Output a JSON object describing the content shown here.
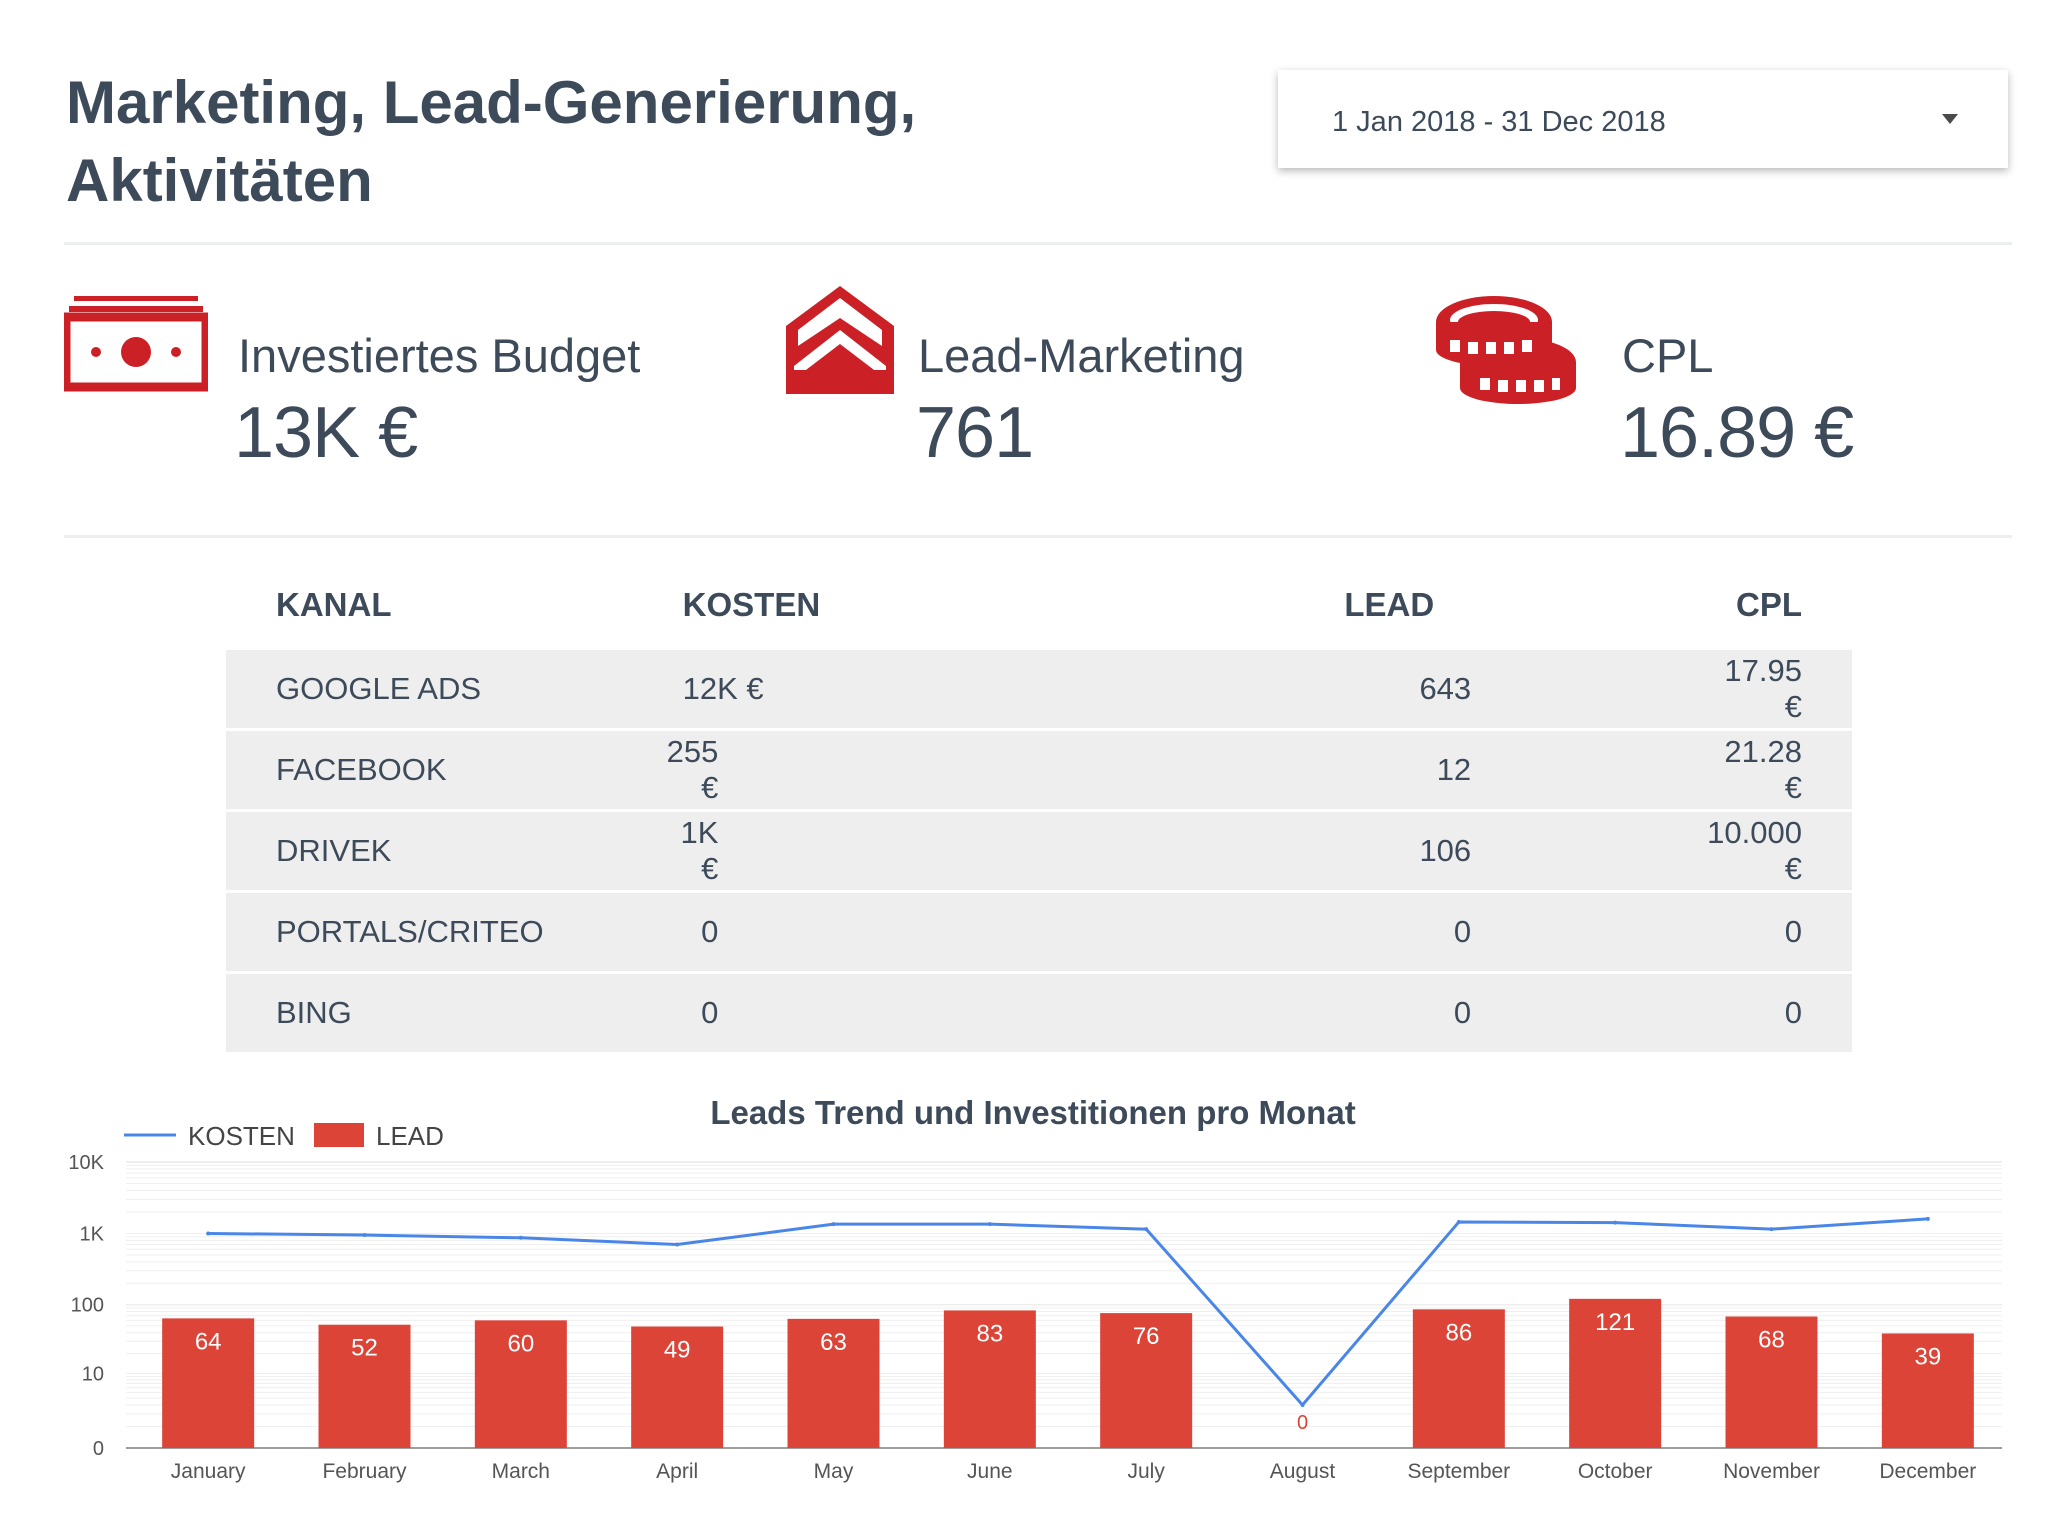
{
  "header": {
    "title_line1": "Marketing, Lead-Generierung,",
    "title_line2": "Aktivitäten",
    "date_range": "1 Jan 2018 - 31 Dec 2018"
  },
  "kpis": [
    {
      "icon": "money-bill-icon",
      "label": "Investiertes Budget",
      "value": "13K €"
    },
    {
      "icon": "envelope-icon",
      "label": "Lead-Marketing",
      "value": "761"
    },
    {
      "icon": "coins-icon",
      "label": "CPL",
      "value": "16.89 €"
    }
  ],
  "table": {
    "headers": [
      "KANAL",
      "KOSTEN",
      "LEAD",
      "CPL"
    ],
    "rows": [
      {
        "kanal": "GOOGLE ADS",
        "kosten": "12K €",
        "lead": "643",
        "cpl": "17.95 €"
      },
      {
        "kanal": "FACEBOOK",
        "kosten": "255 €",
        "lead": "12",
        "cpl": "21.28  €"
      },
      {
        "kanal": "DRIVEK",
        "kosten": "1K €",
        "lead": "106",
        "cpl": "10.000 €"
      },
      {
        "kanal": "PORTALS/CRITEO",
        "kosten": "0",
        "lead": "0",
        "cpl": "0"
      },
      {
        "kanal": "BING",
        "kosten": "0",
        "lead": "0",
        "cpl": "0"
      }
    ]
  },
  "colors": {
    "accent": "#cc2027",
    "bar": "#db4437",
    "line": "#4a86e8",
    "text": "#3d4a5a"
  },
  "chart_data": {
    "type": "bar",
    "title": "Leads Trend und Investitionen pro Monat",
    "y_scale": "log",
    "y_ticks": [
      "0",
      "10",
      "100",
      "1K",
      "10K"
    ],
    "categories": [
      "January",
      "February",
      "March",
      "April",
      "May",
      "June",
      "July",
      "August",
      "September",
      "October",
      "November",
      "December"
    ],
    "series": [
      {
        "name": "LEAD",
        "type": "bar",
        "values": [
          64,
          52,
          60,
          49,
          63,
          83,
          76,
          0,
          86,
          121,
          68,
          39
        ]
      },
      {
        "name": "KOSTEN",
        "type": "line",
        "values": [
          1000,
          950,
          870,
          700,
          1350,
          1350,
          1150,
          3,
          1450,
          1420,
          1150,
          1600
        ]
      }
    ],
    "legend": [
      "KOSTEN",
      "LEAD"
    ],
    "legend_position": "top-left"
  }
}
